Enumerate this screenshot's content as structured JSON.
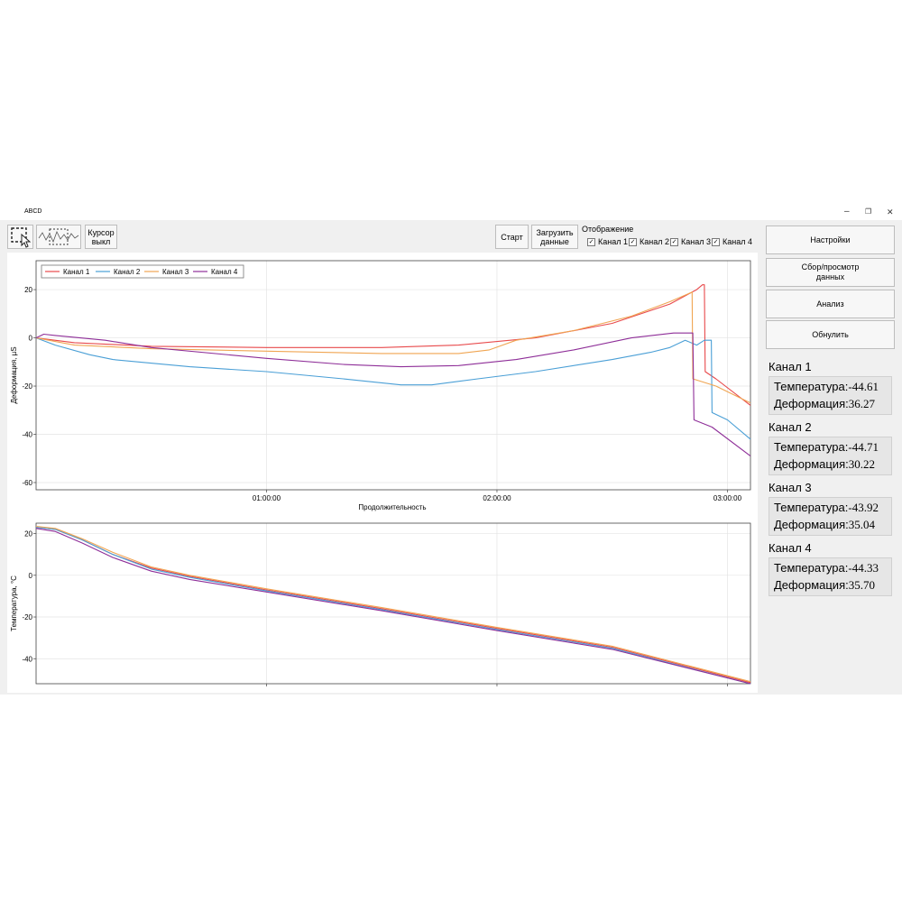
{
  "window": {
    "title": "ABCD",
    "controls": {
      "minimize": "–",
      "restore": "❐",
      "close": "✕"
    }
  },
  "toolbar": {
    "cursor_line1": "Курсор",
    "cursor_line2": "выкл",
    "start_label": "Старт",
    "load_line1": "Загрузить",
    "load_line2": "данные",
    "display_label": "Отображение",
    "channels": [
      {
        "label": "Канал 1",
        "checked": true
      },
      {
        "label": "Канал 2",
        "checked": true
      },
      {
        "label": "Канал 3",
        "checked": true
      },
      {
        "label": "Канал 4",
        "checked": true
      }
    ]
  },
  "sidebar": {
    "buttons": [
      {
        "label": "Настройки"
      },
      {
        "label": "Сбор/просмотр данных"
      },
      {
        "label": "Анализ"
      },
      {
        "label": "Обнулить"
      }
    ],
    "channels": [
      {
        "title": "Канал 1",
        "temp_label": "Температура:",
        "temp": "-44.61",
        "def_label": "Деформация:",
        "def": "36.27"
      },
      {
        "title": "Канал 2",
        "temp_label": "Температура:",
        "temp": "-44.71",
        "def_label": "Деформация:",
        "def": "30.22"
      },
      {
        "title": "Канал 3",
        "temp_label": "Температура:",
        "temp": "-43.92",
        "def_label": "Деформация:",
        "def": "35.04"
      },
      {
        "title": "Канал 4",
        "temp_label": "Температура:",
        "temp": "-44.33",
        "def_label": "Деформация:",
        "def": "35.70"
      }
    ]
  },
  "colors": {
    "channel1": "#e8494b",
    "channel2": "#4a9fd6",
    "channel3": "#f0a552",
    "channel4": "#8e2e98"
  },
  "chart_data": [
    {
      "type": "line",
      "ylabel": "Деформация, µS",
      "xlabel": "Продолжительность",
      "xlim": [
        0,
        186
      ],
      "ylim": [
        -63,
        32
      ],
      "x_unit": "minutes",
      "x_ticks": [
        {
          "value": 60,
          "label": "01:00:00"
        },
        {
          "value": 120,
          "label": "02:00:00"
        },
        {
          "value": 180,
          "label": "03:00:00"
        }
      ],
      "y_ticks": [
        {
          "value": 20,
          "label": "20"
        },
        {
          "value": 0,
          "label": "0"
        },
        {
          "value": -20,
          "label": "-20"
        },
        {
          "value": -40,
          "label": "-40"
        },
        {
          "value": -60,
          "label": "-60"
        }
      ],
      "grid": true,
      "legend_position": "top-left",
      "series": [
        {
          "name": "Канал 1",
          "color": "#e8494b",
          "points": [
            [
              0,
              0
            ],
            [
              10,
              -2
            ],
            [
              30,
              -3.5
            ],
            [
              60,
              -4
            ],
            [
              90,
              -4
            ],
            [
              110,
              -3
            ],
            [
              130,
              0
            ],
            [
              150,
              6
            ],
            [
              165,
              14
            ],
            [
              172,
              20
            ],
            [
              173.5,
              22
            ],
            [
              174,
              22
            ],
            [
              174.2,
              -14
            ],
            [
              177,
              -17
            ],
            [
              186,
              -28
            ]
          ]
        },
        {
          "name": "Канал 2",
          "color": "#4a9fd6",
          "points": [
            [
              0,
              0
            ],
            [
              5,
              -3
            ],
            [
              14,
              -7
            ],
            [
              20,
              -9
            ],
            [
              40,
              -12
            ],
            [
              60,
              -14
            ],
            [
              80,
              -17
            ],
            [
              95,
              -19.5
            ],
            [
              103,
              -19.5
            ],
            [
              115,
              -17
            ],
            [
              130,
              -14
            ],
            [
              150,
              -9
            ],
            [
              160,
              -6
            ],
            [
              165,
              -4
            ],
            [
              169,
              -1
            ],
            [
              172,
              -3
            ],
            [
              174,
              -1
            ],
            [
              175.8,
              -1
            ],
            [
              176,
              -31
            ],
            [
              180,
              -34
            ],
            [
              186,
              -42
            ]
          ]
        },
        {
          "name": "Канал 3",
          "color": "#f0a552",
          "points": [
            [
              0,
              0
            ],
            [
              10,
              -3
            ],
            [
              30,
              -4.5
            ],
            [
              60,
              -5.5
            ],
            [
              90,
              -6.5
            ],
            [
              110,
              -6.5
            ],
            [
              118,
              -5
            ],
            [
              125,
              -1
            ],
            [
              140,
              3
            ],
            [
              155,
              9
            ],
            [
              165,
              15
            ],
            [
              170.8,
              19
            ],
            [
              171,
              -17
            ],
            [
              177,
              -20
            ],
            [
              186,
              -27
            ]
          ]
        },
        {
          "name": "Канал 4",
          "color": "#8e2e98",
          "points": [
            [
              0,
              0
            ],
            [
              2,
              1.5
            ],
            [
              5,
              1
            ],
            [
              18,
              -1
            ],
            [
              30,
              -4
            ],
            [
              60,
              -8.5
            ],
            [
              80,
              -11
            ],
            [
              95,
              -12
            ],
            [
              110,
              -11.5
            ],
            [
              125,
              -9
            ],
            [
              140,
              -5
            ],
            [
              155,
              0
            ],
            [
              166,
              2
            ],
            [
              171,
              2
            ],
            [
              171.3,
              -34
            ],
            [
              176,
              -37
            ],
            [
              186,
              -49
            ]
          ]
        }
      ]
    },
    {
      "type": "line",
      "ylabel": "Температура, °C",
      "xlabel": "",
      "xlim": [
        0,
        186
      ],
      "ylim": [
        -52,
        25
      ],
      "x_unit": "minutes",
      "x_ticks": [
        {
          "value": 60,
          "label": ""
        },
        {
          "value": 120,
          "label": ""
        },
        {
          "value": 180,
          "label": ""
        }
      ],
      "y_ticks": [
        {
          "value": 20,
          "label": "20"
        },
        {
          "value": 0,
          "label": "0"
        },
        {
          "value": -20,
          "label": "-20"
        },
        {
          "value": -40,
          "label": "-40"
        }
      ],
      "grid": true,
      "series": [
        {
          "name": "Канал 1",
          "color": "#e8494b",
          "points": [
            [
              0,
              23
            ],
            [
              5,
              22
            ],
            [
              12,
              17
            ],
            [
              20,
              10
            ],
            [
              30,
              3.5
            ],
            [
              40,
              -0.5
            ],
            [
              60,
              -7
            ],
            [
              90,
              -16
            ],
            [
              120,
              -25.5
            ],
            [
              150,
              -34.5
            ],
            [
              186,
              -51.5
            ]
          ]
        },
        {
          "name": "Канал 2",
          "color": "#4a9fd6",
          "points": [
            [
              0,
              23
            ],
            [
              5,
              22
            ],
            [
              12,
              17
            ],
            [
              20,
              10
            ],
            [
              30,
              3
            ],
            [
              40,
              -1
            ],
            [
              60,
              -7.5
            ],
            [
              90,
              -16.5
            ],
            [
              120,
              -26
            ],
            [
              150,
              -35
            ],
            [
              186,
              -52
            ]
          ]
        },
        {
          "name": "Канал 3",
          "color": "#f0a552",
          "points": [
            [
              0,
              23.5
            ],
            [
              5,
              22.5
            ],
            [
              12,
              17.5
            ],
            [
              20,
              11
            ],
            [
              30,
              4
            ],
            [
              40,
              0
            ],
            [
              60,
              -6.5
            ],
            [
              90,
              -15.5
            ],
            [
              120,
              -25
            ],
            [
              150,
              -34
            ],
            [
              186,
              -51
            ]
          ]
        },
        {
          "name": "Канал 4",
          "color": "#8e2e98",
          "points": [
            [
              0,
              22.5
            ],
            [
              5,
              21
            ],
            [
              12,
              15.5
            ],
            [
              20,
              8.5
            ],
            [
              30,
              2
            ],
            [
              40,
              -2
            ],
            [
              60,
              -8
            ],
            [
              90,
              -17
            ],
            [
              120,
              -26.5
            ],
            [
              150,
              -35.5
            ],
            [
              186,
              -52
            ]
          ]
        }
      ]
    }
  ]
}
